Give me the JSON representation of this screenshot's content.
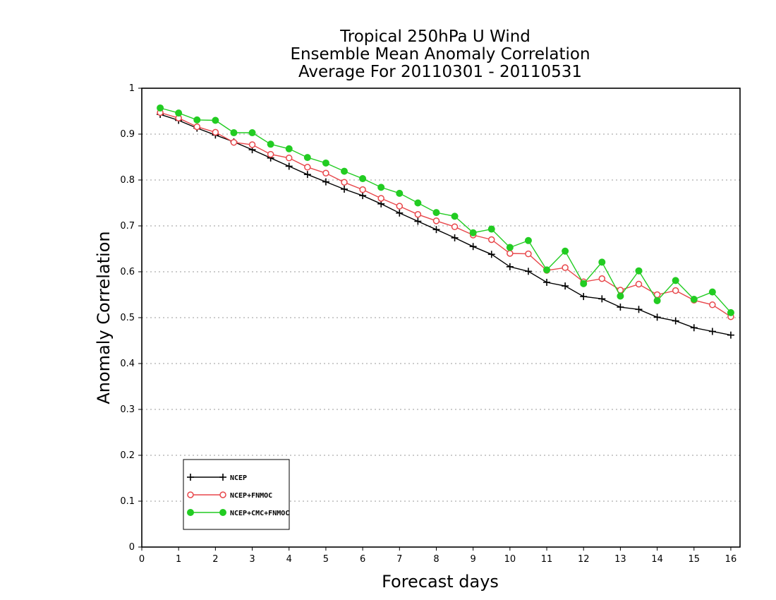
{
  "chart_data": {
    "type": "line",
    "title_lines": [
      "Tropical 250hPa U Wind",
      "Ensemble Mean Anomaly Correlation",
      "Average For 20110301 - 20110531"
    ],
    "xlabel": "Forecast days",
    "ylabel": "Anomaly Correlation",
    "xlim": [
      0,
      16.25
    ],
    "ylim": [
      0,
      1
    ],
    "x_ticks": [
      0,
      1,
      2,
      3,
      4,
      5,
      6,
      7,
      8,
      9,
      10,
      11,
      12,
      13,
      14,
      15,
      16
    ],
    "y_ticks": [
      0,
      0.1,
      0.2,
      0.3,
      0.4,
      0.5,
      0.6,
      0.7,
      0.8,
      0.9,
      1
    ],
    "y_tick_labels": [
      "0",
      "0.1",
      "0.2",
      "0.3",
      "0.4",
      "0.5",
      "0.6",
      "0.7",
      "0.8",
      "0.9",
      "1"
    ],
    "grid": true,
    "legend_position": "lower-left",
    "x": [
      0.5,
      1,
      1.5,
      2,
      2.5,
      3,
      3.5,
      4,
      4.5,
      5,
      5.5,
      6,
      6.5,
      7,
      7.5,
      8,
      8.5,
      9,
      9.5,
      10,
      10.5,
      11,
      11.5,
      12,
      12.5,
      13,
      13.5,
      14,
      14.5,
      15,
      15.5,
      16
    ],
    "series": [
      {
        "name": "NCEP",
        "color": "#000000",
        "marker": "plus",
        "values": [
          0.943,
          0.93,
          0.913,
          0.898,
          0.883,
          0.866,
          0.848,
          0.83,
          0.812,
          0.796,
          0.78,
          0.766,
          0.748,
          0.728,
          0.71,
          0.692,
          0.674,
          0.655,
          0.638,
          0.611,
          0.601,
          0.577,
          0.569,
          0.546,
          0.541,
          0.523,
          0.518,
          0.501,
          0.493,
          0.478,
          0.47,
          0.462
        ]
      },
      {
        "name": "NCEP+FNMOC",
        "color": "#e8474b",
        "marker": "open-circle",
        "values": [
          0.947,
          0.935,
          0.916,
          0.904,
          0.882,
          0.877,
          0.856,
          0.848,
          0.828,
          0.815,
          0.795,
          0.779,
          0.76,
          0.743,
          0.725,
          0.711,
          0.698,
          0.68,
          0.67,
          0.64,
          0.639,
          0.603,
          0.609,
          0.578,
          0.585,
          0.56,
          0.573,
          0.55,
          0.559,
          0.538,
          0.528,
          0.502
        ]
      },
      {
        "name": "NCEP+CMC+FNMOC",
        "color": "#22cc22",
        "marker": "filled-circle",
        "values": [
          0.957,
          0.946,
          0.931,
          0.93,
          0.903,
          0.903,
          0.878,
          0.868,
          0.849,
          0.837,
          0.819,
          0.803,
          0.784,
          0.771,
          0.75,
          0.729,
          0.721,
          0.685,
          0.693,
          0.653,
          0.668,
          0.604,
          0.645,
          0.574,
          0.621,
          0.547,
          0.602,
          0.537,
          0.581,
          0.54,
          0.556,
          0.511
        ]
      }
    ]
  }
}
